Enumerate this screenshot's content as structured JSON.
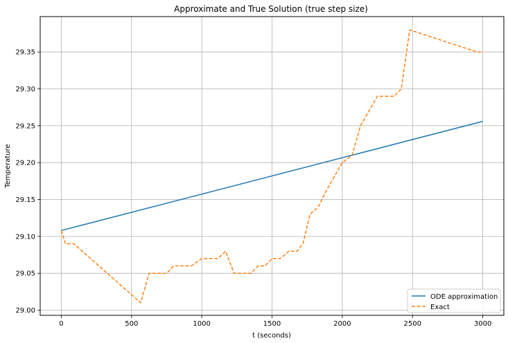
{
  "chart_data": {
    "type": "line",
    "title": "Approximate and True Solution (true step size)",
    "xlabel": "t (seconds)",
    "ylabel": "Temperature",
    "xlim": [
      -150,
      3150
    ],
    "ylim": [
      28.993,
      29.398
    ],
    "x_ticks": [
      0,
      500,
      1000,
      1500,
      2000,
      2500,
      3000
    ],
    "y_ticks": [
      29.0,
      29.05,
      29.1,
      29.15,
      29.2,
      29.25,
      29.3,
      29.35
    ],
    "x_tick_labels": [
      "0",
      "500",
      "1000",
      "1500",
      "2000",
      "2500",
      "3000"
    ],
    "y_tick_labels": [
      "29.00",
      "29.05",
      "29.10",
      "29.15",
      "29.20",
      "29.25",
      "29.30",
      "29.35"
    ],
    "grid": true,
    "legend_position": "lower-right",
    "series": [
      {
        "name": "ODE approximation",
        "color": "#1f77b4",
        "style": "solid",
        "x": [
          0,
          3000
        ],
        "y": [
          29.108,
          29.256
        ]
      },
      {
        "name": "Exact",
        "color": "#ff7f0e",
        "style": "dashed",
        "x": [
          0,
          30,
          90,
          565,
          625,
          750,
          800,
          925,
          1000,
          1115,
          1170,
          1230,
          1350,
          1400,
          1450,
          1500,
          1560,
          1620,
          1680,
          1720,
          1770,
          1830,
          1880,
          1940,
          2000,
          2070,
          2130,
          2250,
          2370,
          2420,
          2480,
          2960,
          3000
        ],
        "y": [
          29.108,
          29.09,
          29.09,
          29.01,
          29.05,
          29.05,
          29.06,
          29.06,
          29.07,
          29.07,
          29.08,
          29.05,
          29.05,
          29.06,
          29.06,
          29.07,
          29.07,
          29.08,
          29.08,
          29.09,
          29.13,
          29.14,
          29.16,
          29.18,
          29.2,
          29.21,
          29.25,
          29.29,
          29.29,
          29.3,
          29.38,
          29.35,
          29.35
        ]
      }
    ]
  }
}
